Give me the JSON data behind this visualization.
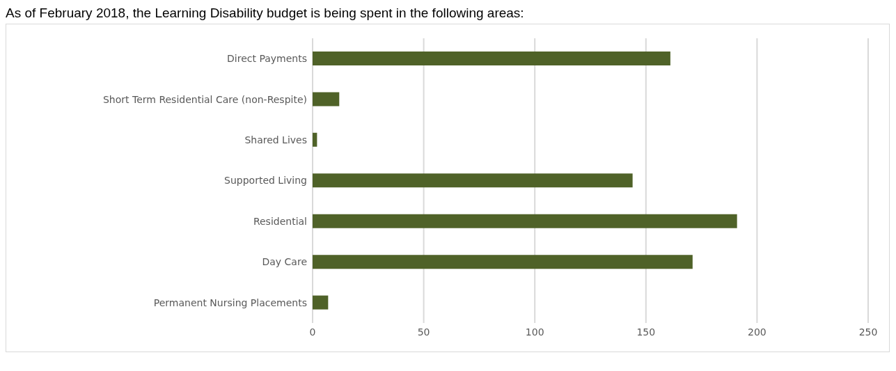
{
  "chart_data": {
    "type": "bar",
    "orientation": "horizontal",
    "title": "As of February 2018, the Learning Disability budget is being spent in the following areas:",
    "categories": [
      "Direct Payments",
      "Short Term Residential Care (non-Respite)",
      "Shared Lives",
      "Supported Living",
      "Residential",
      "Day Care",
      "Permanent Nursing Placements"
    ],
    "values": [
      161,
      12,
      2,
      144,
      191,
      171,
      7
    ],
    "color": "#4f6228",
    "xlim": [
      0,
      250
    ],
    "xticks": [
      0,
      50,
      100,
      150,
      200,
      250
    ],
    "grid": "x"
  }
}
